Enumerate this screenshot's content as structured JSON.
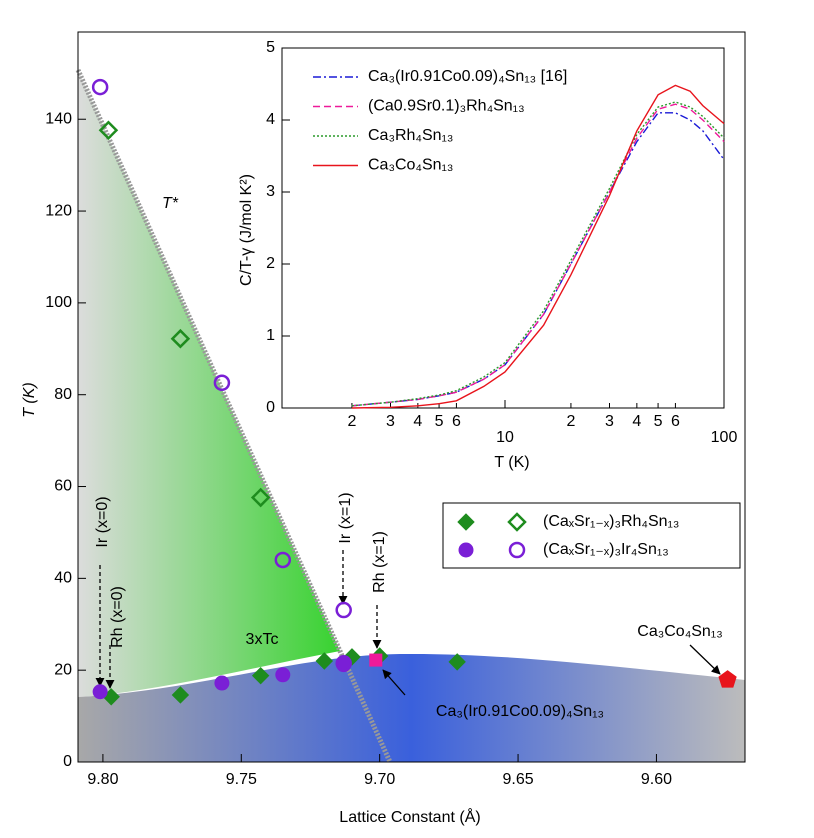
{
  "chart_data": [
    {
      "type": "scatter",
      "x_label": "Lattice Constant (Å)",
      "y_label": "T (K)",
      "xlim": [
        9.809,
        9.568
      ],
      "ylim": [
        0,
        159
      ],
      "xticks": [
        {
          "value": 9.8,
          "label": "9.80"
        },
        {
          "value": 9.75,
          "label": "9.75"
        },
        {
          "value": 9.7,
          "label": "9.70"
        },
        {
          "value": 9.65,
          "label": "9.65"
        },
        {
          "value": 9.6,
          "label": "9.60"
        }
      ],
      "yticks": [
        0,
        20,
        40,
        60,
        80,
        100,
        120,
        140
      ],
      "series": [
        {
          "name": "(CaₓSr₁₋ₓ)₃Rh₄Sn₁₃",
          "color": "#1e8c1e",
          "marker": "diamond",
          "filled": true,
          "x": [
            9.797,
            9.772,
            9.743,
            9.72,
            9.71,
            9.7,
            9.672
          ],
          "values": [
            14.2,
            14.6,
            18.8,
            22,
            22.9,
            23.1,
            21.8
          ]
        },
        {
          "color": "#1e8c1e",
          "marker": "diamond",
          "filled": false,
          "x": [
            9.798,
            9.772,
            9.743
          ],
          "values": [
            137.6,
            92.2,
            57.6
          ]
        },
        {
          "name": "(CaₓSr₁₋ₓ)₃Ir₄Sn₁₃",
          "color": "#7a1fd6",
          "marker": "circle",
          "filled": true,
          "x": [
            9.801,
            9.757,
            9.735,
            9.713
          ],
          "values": [
            15.3,
            17.2,
            19,
            21.2
          ]
        },
        {
          "color": "#7a1fd6",
          "marker": "circle",
          "filled": false,
          "x": [
            9.801,
            9.757,
            9.735,
            9.713,
            9.713
          ],
          "values": [
            147,
            82.6,
            44,
            33.1,
            21.5
          ]
        },
        {
          "color": "#ee1a9a",
          "marker": "square",
          "filled": true,
          "x": [
            9.7014
          ],
          "values": [
            22.2
          ]
        },
        {
          "color": "#e8141c",
          "marker": "pentagon",
          "filled": true,
          "x": [
            9.5743
          ],
          "values": [
            17.9
          ]
        }
      ],
      "annotations": [
        "T*",
        "3xTc",
        "Ir (x=0)",
        "Rh (x=0)",
        "Ir (x=1)",
        "Rh (x=1)",
        "Ca₃Co₄Sn₁₃",
        "Ca₃(Ir0.91Co0.09)₄Sn₁₃"
      ]
    },
    {
      "type": "line",
      "x_log": true,
      "x_label": "T (K)",
      "y_label": "C/T-γ (J/mol K²)",
      "xlim": [
        1,
        100
      ],
      "ylim": [
        0,
        5
      ],
      "xticks": [
        2,
        3,
        4,
        5,
        6,
        10,
        {
          "value": 20,
          "label": "2"
        },
        {
          "value": 30,
          "label": "3"
        },
        {
          "value": 40,
          "label": "4"
        },
        {
          "value": 50,
          "label": "5"
        },
        {
          "value": 60,
          "label": "6"
        },
        100
      ],
      "yticks": [
        0,
        1,
        2,
        3,
        4,
        5
      ],
      "x": [
        2,
        3,
        4,
        5,
        6,
        8,
        10,
        15,
        20,
        30,
        40,
        50,
        60,
        70,
        80,
        100
      ],
      "series": [
        {
          "name": "Ca₃(Ir0.91Co0.09)₄Sn₁₃ [16]",
          "color": "#1a1ad6",
          "dash": "8,3,2,3",
          "values": [
            0.03,
            0.08,
            0.12,
            0.17,
            0.22,
            0.4,
            0.6,
            1.3,
            2.0,
            3.0,
            3.7,
            4.1,
            4.1,
            4.0,
            3.85,
            3.45
          ]
        },
        {
          "name": "(Ca0.9Sr0.1)₃Rh₄Sn₁₃",
          "color": "#ee1a9a",
          "dash": "7,4",
          "values": [
            0.03,
            0.08,
            0.12,
            0.17,
            0.22,
            0.4,
            0.6,
            1.3,
            2.0,
            3.0,
            3.75,
            4.15,
            4.22,
            4.15,
            4.0,
            3.7
          ]
        },
        {
          "name": "Ca₃Rh₄Sn₁₃",
          "color": "#2a9a2a",
          "dash": "2,2",
          "values": [
            0.03,
            0.08,
            0.13,
            0.18,
            0.24,
            0.43,
            0.63,
            1.35,
            2.05,
            3.05,
            3.8,
            4.18,
            4.25,
            4.18,
            4.05,
            3.75
          ]
        },
        {
          "name": "Ca₃Co₄Sn₁₃",
          "color": "#e8141c",
          "dash": "",
          "values": [
            0,
            0.01,
            0.03,
            0.06,
            0.1,
            0.3,
            0.5,
            1.15,
            1.85,
            2.95,
            3.85,
            4.35,
            4.48,
            4.4,
            4.2,
            3.95
          ]
        }
      ]
    }
  ]
}
